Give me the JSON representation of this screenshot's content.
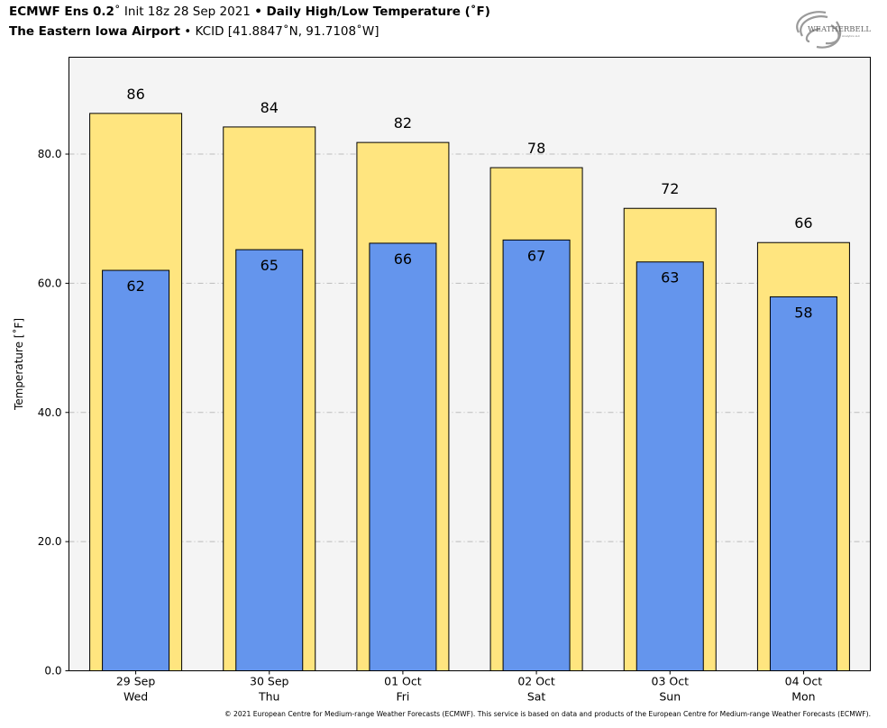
{
  "header": {
    "model": "ECMWF Ens 0.2",
    "model_deg": "˚",
    "init": " Init 18z 28 Sep 2021 ",
    "bullet": "•",
    "product": " Daily High/Low Temperature (˚F)",
    "station_name": "The Eastern Iowa Airport",
    "station_id": " KCID [41.8847˚N, 91.7108˚W]"
  },
  "logo": {
    "text": "WEATHERBELL",
    "sub": "Analytics LLC"
  },
  "footer": "© 2021 European Centre for Medium-range Weather Forecasts (ECMWF). This service is based on data and products of the European Centre for Medium-range Weather Forecasts (ECMWF).",
  "chart_data": {
    "type": "bar",
    "ylabel": "Temperature [˚F]",
    "ylim": [
      0,
      95
    ],
    "yticks": [
      0,
      20,
      40,
      60,
      80
    ],
    "ytick_labels": [
      "0.0",
      "20.0",
      "40.0",
      "60.0",
      "80.0"
    ],
    "grid": true,
    "categories": [
      [
        "29 Sep",
        "Wed"
      ],
      [
        "30 Sep",
        "Thu"
      ],
      [
        "01 Oct",
        "Fri"
      ],
      [
        "02 Oct",
        "Sat"
      ],
      [
        "03 Oct",
        "Sun"
      ],
      [
        "04 Oct",
        "Mon"
      ]
    ],
    "series": [
      {
        "values": [
          86.3,
          84.2,
          81.8,
          77.9,
          71.6,
          66.3
        ],
        "labels": [
          "86",
          "84",
          "82",
          "78",
          "72",
          "66"
        ],
        "color": "#FFE57F"
      },
      {
        "values": [
          62.0,
          65.2,
          66.2,
          66.7,
          63.3,
          57.9
        ],
        "labels": [
          "62",
          "65",
          "66",
          "67",
          "63",
          "58"
        ],
        "color": "#6495ED"
      }
    ],
    "colors": {
      "plot_background": "#f4f4f4",
      "grid": "#bbbbbb"
    }
  }
}
